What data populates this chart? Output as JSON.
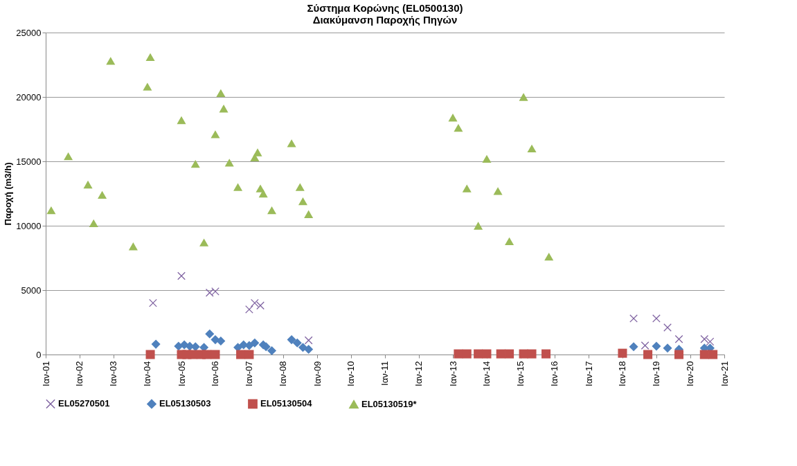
{
  "chart_data": {
    "type": "scatter",
    "title": "Σύστημα Κορώνης (EL0500130)\nΔιακύμανση Παροχής Πηγών",
    "ylabel": "Παροχή (m3/h)",
    "xlim": [
      "2001-01",
      "2021-01"
    ],
    "xticks": [
      {
        "value": "2001-01",
        "label": "Ιαν-01"
      },
      {
        "value": "2002-01",
        "label": "Ιαν-02"
      },
      {
        "value": "2003-01",
        "label": "Ιαν-03"
      },
      {
        "value": "2004-01",
        "label": "Ιαν-04"
      },
      {
        "value": "2005-01",
        "label": "Ιαν-05"
      },
      {
        "value": "2006-01",
        "label": "Ιαν-06"
      },
      {
        "value": "2007-01",
        "label": "Ιαν-07"
      },
      {
        "value": "2008-01",
        "label": "Ιαν-08"
      },
      {
        "value": "2009-01",
        "label": "Ιαν-09"
      },
      {
        "value": "2010-01",
        "label": "Ιαν-10"
      },
      {
        "value": "2011-01",
        "label": "Ιαν-11"
      },
      {
        "value": "2012-01",
        "label": "Ιαν-12"
      },
      {
        "value": "2013-01",
        "label": "Ιαν-13"
      },
      {
        "value": "2014-01",
        "label": "Ιαν-14"
      },
      {
        "value": "2015-01",
        "label": "Ιαν-15"
      },
      {
        "value": "2016-01",
        "label": "Ιαν-16"
      },
      {
        "value": "2017-01",
        "label": "Ιαν-17"
      },
      {
        "value": "2018-01",
        "label": "Ιαν-18"
      },
      {
        "value": "2019-01",
        "label": "Ιαν-19"
      },
      {
        "value": "2020-01",
        "label": "Ιαν-20"
      },
      {
        "value": "2021-01",
        "label": "Ιαν-21"
      }
    ],
    "ylim": [
      0,
      25000
    ],
    "yticks": [
      0,
      5000,
      10000,
      15000,
      20000,
      25000
    ],
    "grid": "y",
    "legend": "bottom",
    "series": [
      {
        "name": "EL05270501",
        "color": "#8064a2",
        "marker": "cross",
        "x": [
          "2004-03",
          "2005-01",
          "2005-11",
          "2006-01",
          "2007-01",
          "2007-03",
          "2007-05",
          "2008-10",
          "2018-05",
          "2018-09",
          "2019-01",
          "2019-05",
          "2019-09",
          "2020-06",
          "2020-08"
        ],
        "values": [
          4000,
          6100,
          4800,
          4900,
          3500,
          4000,
          3800,
          1100,
          2800,
          700,
          2800,
          2100,
          1200,
          1200,
          1000
        ]
      },
      {
        "name": "EL05130503",
        "color": "#4f81bd",
        "marker": "diamond",
        "x": [
          "2004-04",
          "2004-12",
          "2005-02",
          "2005-04",
          "2005-06",
          "2005-09",
          "2005-11",
          "2006-01",
          "2006-03",
          "2006-09",
          "2006-11",
          "2007-01",
          "2007-03",
          "2007-06",
          "2007-07",
          "2007-09",
          "2008-04",
          "2008-06",
          "2008-08",
          "2008-10",
          "2018-05",
          "2019-01",
          "2019-05",
          "2019-09",
          "2020-06",
          "2020-08"
        ],
        "values": [
          800,
          650,
          750,
          650,
          600,
          550,
          1600,
          1150,
          1050,
          550,
          750,
          700,
          900,
          750,
          600,
          300,
          1150,
          900,
          550,
          400,
          600,
          650,
          500,
          400,
          500,
          500
        ]
      },
      {
        "name": "EL05130504",
        "color": "#c0504d",
        "marker": "square",
        "x": [
          "2004-02",
          "2005-01",
          "2005-03",
          "2005-05",
          "2005-08",
          "2005-10",
          "2006-01",
          "2006-10",
          "2007-01",
          "2013-03",
          "2013-06",
          "2013-10",
          "2014-01",
          "2014-06",
          "2014-09",
          "2015-02",
          "2015-05",
          "2015-10",
          "2018-01",
          "2018-10",
          "2019-09",
          "2020-06",
          "2020-09"
        ],
        "values": [
          0,
          0,
          0,
          0,
          0,
          0,
          0,
          0,
          0,
          50,
          50,
          50,
          50,
          50,
          50,
          50,
          50,
          50,
          100,
          0,
          0,
          0,
          0
        ]
      },
      {
        "name": "EL05130519*",
        "color": "#9bbb59",
        "marker": "triangle",
        "x": [
          "2001-03",
          "2001-09",
          "2002-04",
          "2002-09",
          "2002-06",
          "2002-12",
          "2003-08",
          "2004-01",
          "2004-02",
          "2005-01",
          "2005-06",
          "2005-09",
          "2006-01",
          "2006-03",
          "2006-04",
          "2006-06",
          "2006-09",
          "2007-03",
          "2007-04",
          "2007-05",
          "2007-06",
          "2007-09",
          "2008-04",
          "2008-07",
          "2008-08",
          "2008-10",
          "2013-01",
          "2013-03",
          "2013-06",
          "2013-10",
          "2014-01",
          "2014-05",
          "2014-09",
          "2015-02",
          "2015-05",
          "2015-11"
        ],
        "values": [
          11200,
          15400,
          13200,
          12400,
          10200,
          22800,
          8400,
          20800,
          23100,
          18200,
          14800,
          8700,
          17100,
          20300,
          19100,
          14900,
          13000,
          15300,
          15700,
          12900,
          12500,
          11200,
          16400,
          13000,
          11900,
          10900,
          18400,
          17600,
          12900,
          10000,
          15200,
          12700,
          8800,
          20000,
          16000,
          7600
        ]
      }
    ]
  }
}
